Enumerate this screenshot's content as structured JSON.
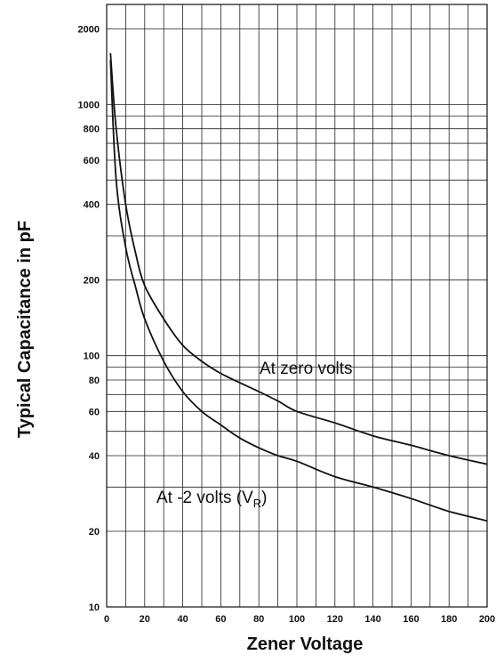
{
  "chart_data": {
    "type": "line",
    "title": "",
    "xlabel": "Zener Voltage",
    "ylabel": "Typical Capacitance in pF",
    "xlim": [
      0,
      200
    ],
    "ylim": [
      10,
      2500
    ],
    "yscale": "log",
    "grid": true,
    "x_ticks": [
      0,
      20,
      40,
      60,
      80,
      100,
      120,
      140,
      160,
      180,
      200
    ],
    "y_ticks": [
      10,
      20,
      40,
      60,
      80,
      100,
      200,
      400,
      600,
      800,
      1000,
      2000
    ],
    "series": [
      {
        "name": "At zero volts",
        "x": [
          2,
          5,
          10,
          15,
          20,
          30,
          40,
          50,
          60,
          70,
          80,
          90,
          100,
          120,
          140,
          160,
          180,
          200
        ],
        "y": [
          1600,
          800,
          400,
          260,
          190,
          140,
          110,
          95,
          85,
          78,
          72,
          66,
          60,
          54,
          48,
          44,
          40,
          37
        ]
      },
      {
        "name": "At -2 volts (VR)",
        "x": [
          2,
          5,
          10,
          15,
          20,
          30,
          40,
          50,
          60,
          70,
          80,
          90,
          100,
          120,
          140,
          160,
          180,
          200
        ],
        "y": [
          1500,
          500,
          270,
          190,
          140,
          95,
          72,
          60,
          53,
          47,
          43,
          40,
          38,
          33,
          30,
          27,
          24,
          22
        ]
      }
    ],
    "labels": {
      "zero": "At zero volts",
      "neg_prefix": "At -2 volts (V",
      "neg_sub": "R",
      "neg_suffix": ")"
    }
  }
}
